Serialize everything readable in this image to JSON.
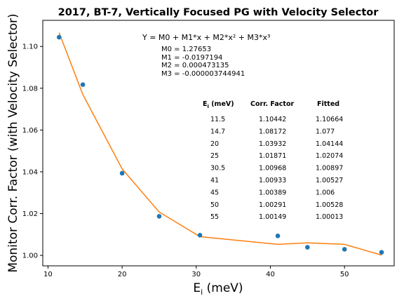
{
  "chart_data": {
    "type": "scatter",
    "title": "2017, BT-7, Vertically Focused PG with Velocity Selector",
    "xlabel_main": "E",
    "xlabel_sub": "i",
    "xlabel_unit": " (meV)",
    "ylabel": "Monitor Corr. Factor (with Velocity Selector)",
    "xlim": [
      9.3,
      56.7
    ],
    "ylim": [
      0.995,
      1.1125
    ],
    "xticks": [
      10,
      20,
      30,
      40,
      50
    ],
    "yticks": [
      1.0,
      1.02,
      1.04,
      1.06,
      1.08,
      1.1
    ],
    "ytick_labels": [
      "1.00",
      "1.02",
      "1.04",
      "1.06",
      "1.08",
      "1.10"
    ],
    "grid": false,
    "series": [
      {
        "kind": "points",
        "color": "#1f77b4",
        "x": [
          11.5,
          14.7,
          20,
          25,
          30.5,
          41,
          45,
          50,
          55
        ],
        "y": [
          1.10442,
          1.08172,
          1.03932,
          1.01871,
          1.00968,
          1.00933,
          1.00389,
          1.00291,
          1.00149
        ]
      },
      {
        "kind": "line",
        "color": "#ff7f0e",
        "x": [
          11.5,
          14.7,
          20,
          25,
          30.5,
          41,
          45,
          50,
          55
        ],
        "y": [
          1.10664,
          1.077,
          1.04144,
          1.02074,
          1.00897,
          1.00527,
          1.006,
          1.00528,
          1.00013
        ]
      }
    ],
    "annotations": {
      "equation": "Y = M0 + M1*x + M2*x² + M3*x³",
      "params": [
        "M0 = 1.27653",
        "M1 = -0.0197194",
        "M2 = 0.000473135",
        "M3 = -0.000003744941"
      ],
      "table": {
        "header_ei_main": "E",
        "header_ei_sub": "i",
        "header_ei_unit": " (meV)",
        "header_corr": "Corr. Factor",
        "header_fitted": "Fitted",
        "rows": [
          [
            "11.5",
            "1.10442",
            "1.10664"
          ],
          [
            "14.7",
            "1.08172",
            "1.077"
          ],
          [
            "20",
            "1.03932",
            "1.04144"
          ],
          [
            "25",
            "1.01871",
            "1.02074"
          ],
          [
            "30.5",
            "1.00968",
            "1.00897"
          ],
          [
            "41",
            "1.00933",
            "1.00527"
          ],
          [
            "45",
            "1.00389",
            "1.006"
          ],
          [
            "50",
            "1.00291",
            "1.00528"
          ],
          [
            "55",
            "1.00149",
            "1.00013"
          ]
        ]
      }
    }
  }
}
